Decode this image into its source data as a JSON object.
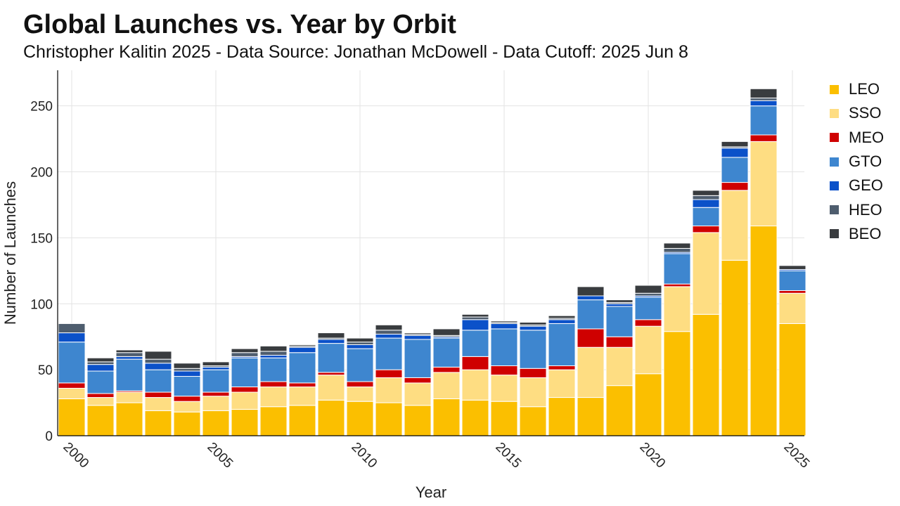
{
  "title": "Global Launches vs. Year by Orbit",
  "subtitle": "Christopher Kalitin 2025 - Data Source: Jonathan McDowell - Data Cutoff: 2025 Jun 8",
  "chart_data": {
    "type": "bar",
    "stacked": true,
    "title": "Global Launches vs. Year by Orbit",
    "subtitle": "Christopher Kalitin 2025 - Data Source: Jonathan McDowell - Data Cutoff: 2025 Jun 8",
    "xlabel": "Year",
    "ylabel": "Number of Launches",
    "categories": [
      2000,
      2001,
      2002,
      2003,
      2004,
      2005,
      2006,
      2007,
      2008,
      2009,
      2010,
      2011,
      2012,
      2013,
      2014,
      2015,
      2016,
      2017,
      2018,
      2019,
      2020,
      2021,
      2022,
      2023,
      2024,
      2025
    ],
    "xticks": [
      2000,
      2005,
      2010,
      2015,
      2020,
      2025
    ],
    "yticks": [
      0,
      50,
      100,
      150,
      200,
      250
    ],
    "ylim": [
      0,
      277
    ],
    "grid": true,
    "legend_position": "right",
    "series": [
      {
        "name": "LEO",
        "color": "#fbbf00",
        "values": [
          28,
          23,
          25,
          19,
          18,
          19,
          20,
          22,
          23,
          27,
          26,
          25,
          23,
          28,
          27,
          26,
          22,
          29,
          29,
          38,
          47,
          79,
          92,
          133,
          159,
          85
        ]
      },
      {
        "name": "SSO",
        "color": "#fedd82",
        "values": [
          8,
          6,
          8,
          10,
          8,
          11,
          13,
          15,
          14,
          19,
          11,
          19,
          17,
          20,
          23,
          20,
          22,
          21,
          38,
          29,
          36,
          34,
          62,
          53,
          64,
          23
        ]
      },
      {
        "name": "MEO",
        "color": "#cf0000",
        "values": [
          4,
          3,
          1,
          4,
          4,
          3,
          4,
          4,
          3,
          2,
          4,
          6,
          4,
          4,
          10,
          7,
          7,
          3,
          14,
          8,
          5,
          2,
          5,
          6,
          5,
          2
        ]
      },
      {
        "name": "GTO",
        "color": "#3e86cf",
        "values": [
          31,
          17,
          24,
          17,
          15,
          17,
          22,
          18,
          23,
          22,
          25,
          24,
          29,
          22,
          20,
          28,
          29,
          32,
          22,
          23,
          17,
          23,
          14,
          19,
          22,
          15
        ]
      },
      {
        "name": "GEO",
        "color": "#0b51c9",
        "values": [
          7,
          5,
          2,
          5,
          4,
          2,
          1,
          2,
          4,
          3,
          3,
          3,
          3,
          1,
          8,
          4,
          3,
          3,
          3,
          2,
          1,
          1,
          6,
          7,
          4,
          1
        ]
      },
      {
        "name": "HEO",
        "color": "#4e5d6e",
        "values": [
          7,
          2,
          3,
          3,
          2,
          1,
          3,
          3,
          1,
          1,
          2,
          3,
          1,
          1,
          2,
          1,
          1,
          1,
          0,
          1,
          2,
          3,
          3,
          1,
          2,
          0
        ]
      },
      {
        "name": "BEO",
        "color": "#393c3f",
        "values": [
          0,
          3,
          2,
          6,
          4,
          3,
          3,
          4,
          1,
          4,
          3,
          4,
          1,
          5,
          2,
          1,
          2,
          2,
          7,
          2,
          6,
          4,
          4,
          4,
          7,
          3
        ]
      }
    ]
  }
}
